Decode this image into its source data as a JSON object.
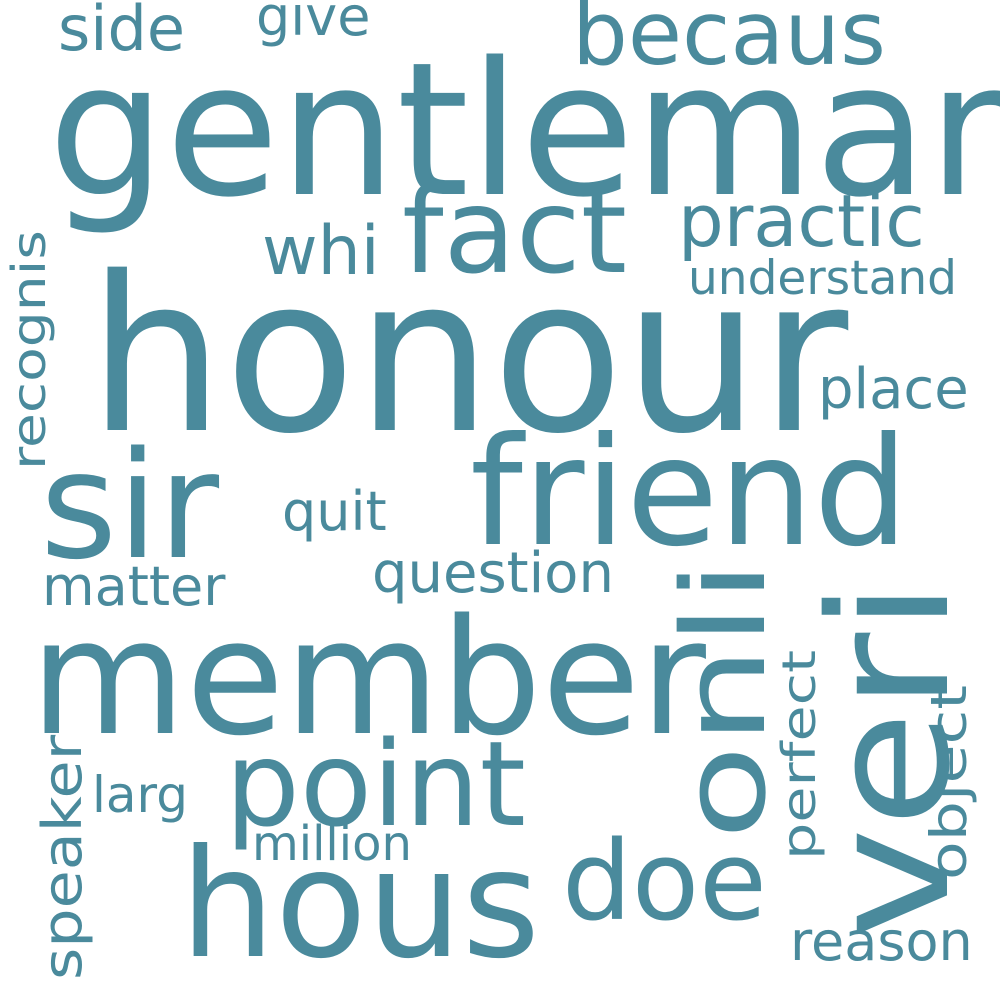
{
  "word_color": "#4a8a9c",
  "background": "#ffffff",
  "words": [
    {
      "text": "honour",
      "weight": 100,
      "orientation": "horizontal"
    },
    {
      "text": "gentleman",
      "weight": 80,
      "orientation": "horizontal"
    },
    {
      "text": "member",
      "weight": 75,
      "orientation": "horizontal"
    },
    {
      "text": "sir",
      "weight": 70,
      "orientation": "horizontal"
    },
    {
      "text": "friend",
      "weight": 66,
      "orientation": "horizontal"
    },
    {
      "text": "hous",
      "weight": 64,
      "orientation": "horizontal"
    },
    {
      "text": "veri",
      "weight": 63,
      "orientation": "vertical"
    },
    {
      "text": "point",
      "weight": 58,
      "orientation": "horizontal"
    },
    {
      "text": "fact",
      "weight": 55,
      "orientation": "horizontal"
    },
    {
      "text": "doe",
      "weight": 52,
      "orientation": "horizontal"
    },
    {
      "text": "onli",
      "weight": 50,
      "orientation": "vertical"
    },
    {
      "text": "becaus",
      "weight": 44,
      "orientation": "horizontal"
    },
    {
      "text": "practic",
      "weight": 40,
      "orientation": "horizontal"
    },
    {
      "text": "whi",
      "weight": 34,
      "orientation": "horizontal"
    },
    {
      "text": "side",
      "weight": 30,
      "orientation": "horizontal"
    },
    {
      "text": "question",
      "weight": 28,
      "orientation": "horizontal"
    },
    {
      "text": "place",
      "weight": 28,
      "orientation": "horizontal"
    },
    {
      "text": "reason",
      "weight": 27,
      "orientation": "horizontal"
    },
    {
      "text": "quit",
      "weight": 27,
      "orientation": "horizontal"
    },
    {
      "text": "matter",
      "weight": 26,
      "orientation": "horizontal"
    },
    {
      "text": "give",
      "weight": 26,
      "orientation": "horizontal"
    },
    {
      "text": "object",
      "weight": 26,
      "orientation": "vertical"
    },
    {
      "text": "speaker",
      "weight": 26,
      "orientation": "vertical"
    },
    {
      "text": "larg",
      "weight": 25,
      "orientation": "horizontal"
    },
    {
      "text": "million",
      "weight": 24,
      "orientation": "horizontal"
    },
    {
      "text": "understand",
      "weight": 24,
      "orientation": "horizontal"
    },
    {
      "text": "perfect",
      "weight": 23,
      "orientation": "vertical"
    },
    {
      "text": "recognis",
      "weight": 22,
      "orientation": "vertical"
    }
  ]
}
